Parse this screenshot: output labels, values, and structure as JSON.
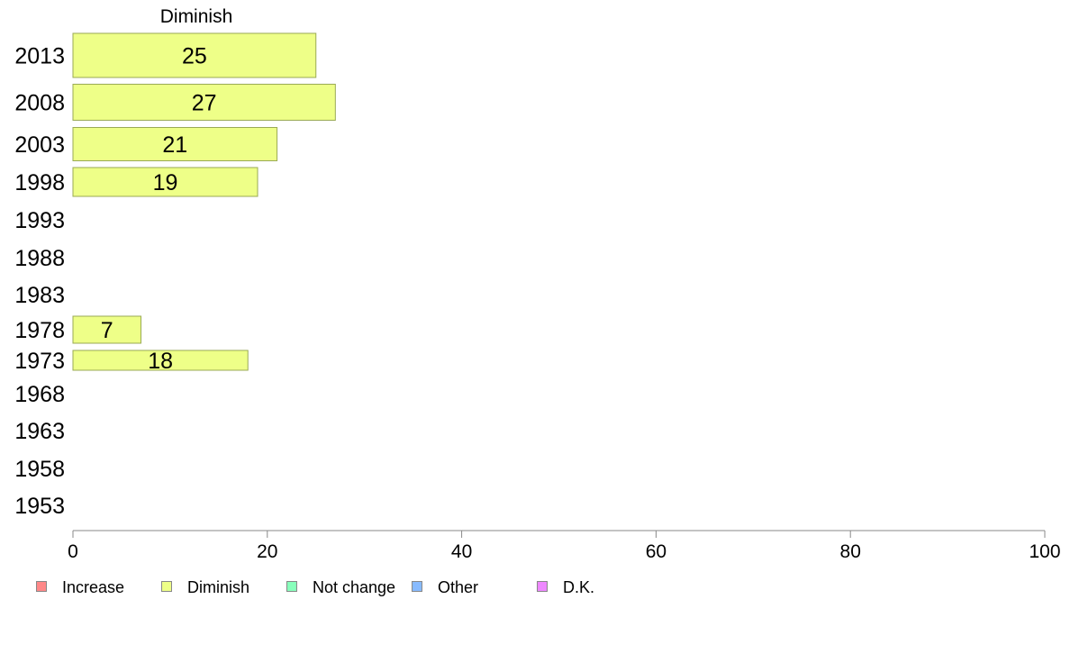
{
  "chart_data": {
    "type": "bar",
    "orientation": "horizontal",
    "title": "Diminish",
    "categories": [
      "2013",
      "2008",
      "2003",
      "1998",
      "1993",
      "1988",
      "1983",
      "1978",
      "1973",
      "1968",
      "1963",
      "1958",
      "1953"
    ],
    "series": [
      {
        "name": "Diminish",
        "values": [
          25,
          27,
          21,
          19,
          null,
          null,
          null,
          7,
          18,
          null,
          null,
          null,
          null
        ]
      }
    ],
    "xlim": [
      0,
      100
    ],
    "x_ticks": [
      "0",
      "20",
      "40",
      "60",
      "80",
      "100"
    ],
    "grid": false,
    "bar_color": "#eeff88",
    "bar_border": "#9aaa55",
    "legend": {
      "placement": "bottom",
      "items": [
        {
          "label": "Increase",
          "color": "#ff8888"
        },
        {
          "label": "Diminish",
          "color": "#eeff88"
        },
        {
          "label": "Not change",
          "color": "#88ffbb"
        },
        {
          "label": "Other",
          "color": "#88bbff"
        },
        {
          "label": "D.K.",
          "color": "#ee88ff"
        }
      ]
    }
  }
}
